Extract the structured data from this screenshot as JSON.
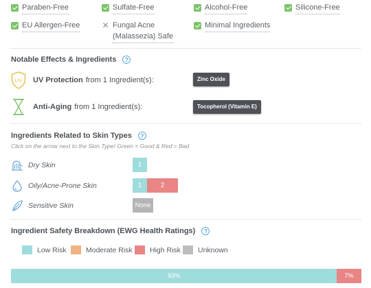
{
  "free_from": [
    {
      "label": "Paraben-Free",
      "check": true
    },
    {
      "label": "Sulfate-Free",
      "check": true
    },
    {
      "label": "Alcohol-Free",
      "check": true
    },
    {
      "label": "Silicone-Free",
      "check": true
    },
    {
      "label": "EU Allergen-Free",
      "check": true
    },
    {
      "label_line1": "Fungal Acne",
      "label_line2": "(Malassezia) Safe",
      "check": false
    },
    {
      "label": "Minimal Ingredients",
      "check": true
    }
  ],
  "effects": {
    "title": "Notable Effects & Ingredients",
    "items": [
      {
        "name": "UV Protection",
        "suffix": "from 1 Ingredient(s):",
        "icon_text": "UV",
        "tag": "Zinc Oxide"
      },
      {
        "name": "Anti-Aging",
        "suffix": "from 1 Ingredient(s):",
        "tag": "Tocopherol (Vitamin E)"
      }
    ]
  },
  "skin_types": {
    "title": "Ingredients Related to Skin Types",
    "hint": "Click on the arrow next to the Skin Type! Green = Good & Red = Bad",
    "rows": [
      {
        "label": "Dry Skin",
        "good": "1"
      },
      {
        "label": "Oily/Acne-Prone Skin",
        "good": "1",
        "bad": "2"
      },
      {
        "label": "Sensitive Skin",
        "none": "None"
      }
    ]
  },
  "safety": {
    "title": "Ingredient Safety Breakdown (EWG Health Ratings)",
    "legend": [
      {
        "label": "Low Risk",
        "color": "#9fdcdc"
      },
      {
        "label": "Moderate Risk",
        "color": "#f0b483"
      },
      {
        "label": "High Risk",
        "color": "#e98585"
      },
      {
        "label": "Unknown",
        "color": "#bdbdbd"
      }
    ],
    "bar": [
      {
        "label": "93%",
        "fraction": 0.93,
        "color": "#9fdcdc"
      },
      {
        "label": "7%",
        "fraction": 0.07,
        "color": "#e98585"
      }
    ]
  },
  "colors": {
    "check_green": "#7dc36b",
    "accent_blue": "#5aa9e0",
    "uv_yellow": "#e6c04b",
    "anti_aging_green": "#7dc36b",
    "tag_bg": "#4e5256",
    "good": "#9fdcdc",
    "bad": "#e98585",
    "none": "#b5b5b5"
  },
  "help_glyph": "?"
}
